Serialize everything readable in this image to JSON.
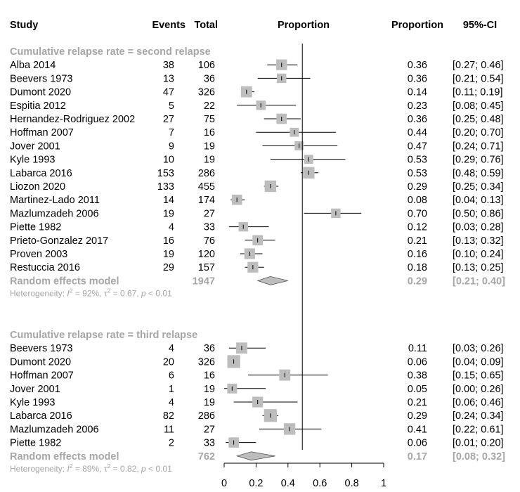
{
  "chart_data": {
    "type": "forest",
    "headers": {
      "study": "Study",
      "events": "Events",
      "total": "Total",
      "plot": "Proportion",
      "proportion": "Proportion",
      "ci": "95%-CI"
    },
    "xlim": [
      0,
      1
    ],
    "ticks": [
      "0",
      "0.2",
      "0.4",
      "0.6",
      "0.8",
      "1"
    ],
    "reference_line": 0.49,
    "groups": [
      {
        "title": "Cumulative relapse rate = second relapse",
        "studies": [
          {
            "name": "Alba 2014",
            "events": "38",
            "total": "106",
            "prop": "0.36",
            "ci": "[0.27; 0.46]",
            "p": 0.36,
            "lo": 0.27,
            "hi": 0.46,
            "w": 0.6
          },
          {
            "name": "Beevers 1973",
            "events": "13",
            "total": "36",
            "prop": "0.36",
            "ci": "[0.21; 0.54]",
            "p": 0.36,
            "lo": 0.21,
            "hi": 0.54,
            "w": 0.45
          },
          {
            "name": "Dumont 2020",
            "events": "47",
            "total": "326",
            "prop": "0.14",
            "ci": "[0.11; 0.19]",
            "p": 0.14,
            "lo": 0.11,
            "hi": 0.19,
            "w": 0.65
          },
          {
            "name": "Espitia 2012",
            "events": "5",
            "total": "22",
            "prop": "0.23",
            "ci": "[0.08; 0.45]",
            "p": 0.23,
            "lo": 0.08,
            "hi": 0.45,
            "w": 0.45
          },
          {
            "name": "Hernandez-Rodriguez 2002",
            "events": "27",
            "total": "75",
            "prop": "0.36",
            "ci": "[0.25; 0.48]",
            "p": 0.36,
            "lo": 0.25,
            "hi": 0.48,
            "w": 0.55
          },
          {
            "name": "Hoffman 2007",
            "events": "7",
            "total": "16",
            "prop": "0.44",
            "ci": "[0.20; 0.70]",
            "p": 0.44,
            "lo": 0.2,
            "hi": 0.7,
            "w": 0.4
          },
          {
            "name": "Jover 2001",
            "events": "9",
            "total": "19",
            "prop": "0.47",
            "ci": "[0.24; 0.71]",
            "p": 0.47,
            "lo": 0.24,
            "hi": 0.71,
            "w": 0.4
          },
          {
            "name": "Kyle 1993",
            "events": "10",
            "total": "19",
            "prop": "0.53",
            "ci": "[0.29; 0.76]",
            "p": 0.53,
            "lo": 0.29,
            "hi": 0.76,
            "w": 0.4
          },
          {
            "name": "Labarca 2016",
            "events": "153",
            "total": "286",
            "prop": "0.53",
            "ci": "[0.48; 0.59]",
            "p": 0.53,
            "lo": 0.48,
            "hi": 0.59,
            "w": 0.7
          },
          {
            "name": "Liozon 2020",
            "events": "133",
            "total": "455",
            "prop": "0.29",
            "ci": "[0.25; 0.34]",
            "p": 0.29,
            "lo": 0.25,
            "hi": 0.34,
            "w": 0.7
          },
          {
            "name": "Martinez-Lado 2011",
            "events": "14",
            "total": "174",
            "prop": "0.08",
            "ci": "[0.04; 0.13]",
            "p": 0.08,
            "lo": 0.04,
            "hi": 0.13,
            "w": 0.55
          },
          {
            "name": "Mazlumzadeh 2006",
            "events": "19",
            "total": "27",
            "prop": "0.70",
            "ci": "[0.50; 0.86]",
            "p": 0.7,
            "lo": 0.5,
            "hi": 0.86,
            "w": 0.45
          },
          {
            "name": "Piette 1982",
            "events": "4",
            "total": "33",
            "prop": "0.12",
            "ci": "[0.03; 0.28]",
            "p": 0.12,
            "lo": 0.03,
            "hi": 0.28,
            "w": 0.45
          },
          {
            "name": "Prieto-Gonzalez 2017",
            "events": "16",
            "total": "76",
            "prop": "0.21",
            "ci": "[0.13; 0.32]",
            "p": 0.21,
            "lo": 0.13,
            "hi": 0.32,
            "w": 0.55
          },
          {
            "name": "Proven 2003",
            "events": "19",
            "total": "120",
            "prop": "0.16",
            "ci": "[0.10; 0.24]",
            "p": 0.16,
            "lo": 0.1,
            "hi": 0.24,
            "w": 0.6
          },
          {
            "name": "Restuccia 2016",
            "events": "29",
            "total": "157",
            "prop": "0.18",
            "ci": "[0.13; 0.25]",
            "p": 0.18,
            "lo": 0.13,
            "hi": 0.25,
            "w": 0.6
          }
        ],
        "pooled": {
          "label": "Random effects model",
          "total": "1947",
          "prop": "0.29",
          "ci": "[0.21; 0.40]",
          "p": 0.29,
          "lo": 0.21,
          "hi": 0.4
        },
        "heterogeneity": {
          "prefix": "Heterogeneity: ",
          "i2_symbol": "I",
          "i2_value": " = 92%, ",
          "tau2_symbol": "τ",
          "tau2_value": " = 0.67, ",
          "p_symbol": "p",
          "p_value": " < 0.01"
        }
      },
      {
        "title": "Cumulative relapse rate = third relapse",
        "studies": [
          {
            "name": "Beevers 1973",
            "events": "4",
            "total": "36",
            "prop": "0.11",
            "ci": "[0.03; 0.26]",
            "p": 0.11,
            "lo": 0.03,
            "hi": 0.26,
            "w": 0.65
          },
          {
            "name": "Dumont 2020",
            "events": "20",
            "total": "326",
            "prop": "0.06",
            "ci": "[0.04; 0.09]",
            "p": 0.06,
            "lo": 0.04,
            "hi": 0.09,
            "w": 0.85
          },
          {
            "name": "Hoffman 2007",
            "events": "6",
            "total": "16",
            "prop": "0.38",
            "ci": "[0.15; 0.65]",
            "p": 0.38,
            "lo": 0.15,
            "hi": 0.65,
            "w": 0.65
          },
          {
            "name": "Jover 2001",
            "events": "1",
            "total": "19",
            "prop": "0.05",
            "ci": "[0.00; 0.26]",
            "p": 0.05,
            "lo": 0.0,
            "hi": 0.26,
            "w": 0.5
          },
          {
            "name": "Kyle 1993",
            "events": "4",
            "total": "19",
            "prop": "0.21",
            "ci": "[0.06; 0.46]",
            "p": 0.21,
            "lo": 0.06,
            "hi": 0.46,
            "w": 0.6
          },
          {
            "name": "Labarca 2016",
            "events": "82",
            "total": "286",
            "prop": "0.29",
            "ci": "[0.24; 0.34]",
            "p": 0.29,
            "lo": 0.24,
            "hi": 0.34,
            "w": 0.85
          },
          {
            "name": "Mazlumzadeh 2006",
            "events": "11",
            "total": "27",
            "prop": "0.41",
            "ci": "[0.22; 0.61]",
            "p": 0.41,
            "lo": 0.22,
            "hi": 0.61,
            "w": 0.7
          },
          {
            "name": "Piette 1982",
            "events": "2",
            "total": "33",
            "prop": "0.06",
            "ci": "[0.01; 0.20]",
            "p": 0.06,
            "lo": 0.01,
            "hi": 0.2,
            "w": 0.55
          }
        ],
        "pooled": {
          "label": "Random effects model",
          "total": "762",
          "prop": "0.17",
          "ci": "[0.08; 0.32]",
          "p": 0.17,
          "lo": 0.08,
          "hi": 0.32
        },
        "heterogeneity": {
          "prefix": "Heterogeneity: ",
          "i2_symbol": "I",
          "i2_value": " = 89%, ",
          "tau2_symbol": "τ",
          "tau2_value": " = 0.82, ",
          "p_symbol": "p",
          "p_value": " < 0.01"
        }
      }
    ]
  }
}
